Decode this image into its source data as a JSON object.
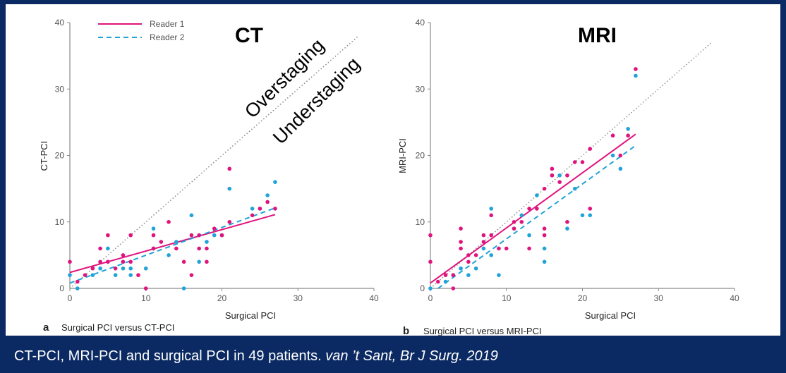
{
  "colors": {
    "reader1": "#e0137d",
    "reader2": "#1fa3d8",
    "identity": "#8a8a8a",
    "axis": "#8a8a8a"
  },
  "caption": {
    "text": "CT-PCI, MRI-PCI and surgical PCI in 49 patients.",
    "citation": "van ’t Sant, Br J Surg. 2019"
  },
  "annotations": {
    "overstaging": "Overstaging",
    "understaging": "Understaging"
  },
  "chart_data": [
    {
      "type": "scatter",
      "panel_letter": "a",
      "title": "CT",
      "subtitle": "Surgical PCI versus CT-PCI",
      "xlabel": "Surgical PCI",
      "ylabel": "CT-PCI",
      "xlim": [
        0,
        40
      ],
      "ylim": [
        0,
        40
      ],
      "xticks": [
        0,
        10,
        20,
        30,
        40
      ],
      "yticks": [
        10,
        20,
        30,
        40
      ],
      "legend": [
        {
          "name": "Reader 1",
          "style": "solid"
        },
        {
          "name": "Reader 2",
          "style": "dashed"
        }
      ],
      "identity_line": [
        [
          0,
          0
        ],
        [
          38,
          38
        ]
      ],
      "series": [
        {
          "name": "Reader 1",
          "points": [
            [
              0,
              4
            ],
            [
              1,
              1
            ],
            [
              2,
              2
            ],
            [
              3,
              3
            ],
            [
              4,
              4
            ],
            [
              4,
              6
            ],
            [
              5,
              8
            ],
            [
              5,
              4
            ],
            [
              6,
              3
            ],
            [
              7,
              5
            ],
            [
              7,
              4
            ],
            [
              8,
              8
            ],
            [
              8,
              4
            ],
            [
              9,
              2
            ],
            [
              10,
              0
            ],
            [
              11,
              8
            ],
            [
              11,
              6
            ],
            [
              12,
              7
            ],
            [
              13,
              10
            ],
            [
              14,
              6
            ],
            [
              15,
              4
            ],
            [
              16,
              8
            ],
            [
              16,
              2
            ],
            [
              17,
              6
            ],
            [
              17,
              8
            ],
            [
              18,
              4
            ],
            [
              18,
              6
            ],
            [
              19,
              9
            ],
            [
              20,
              8
            ],
            [
              21,
              10
            ],
            [
              21,
              18
            ],
            [
              24,
              11
            ],
            [
              25,
              12
            ],
            [
              26,
              13
            ],
            [
              27,
              12
            ]
          ],
          "fit": [
            [
              0,
              2.4
            ],
            [
              27,
              11.1
            ]
          ]
        },
        {
          "name": "Reader 2",
          "points": [
            [
              0,
              2
            ],
            [
              1,
              0
            ],
            [
              3,
              2
            ],
            [
              4,
              3
            ],
            [
              5,
              6
            ],
            [
              6,
              2
            ],
            [
              7,
              3
            ],
            [
              7,
              4
            ],
            [
              8,
              3
            ],
            [
              8,
              2
            ],
            [
              10,
              3
            ],
            [
              11,
              9
            ],
            [
              11,
              6
            ],
            [
              13,
              5
            ],
            [
              14,
              7
            ],
            [
              15,
              0
            ],
            [
              16,
              11
            ],
            [
              17,
              4
            ],
            [
              18,
              7
            ],
            [
              19,
              8
            ],
            [
              20,
              8
            ],
            [
              21,
              15
            ],
            [
              24,
              12
            ],
            [
              25,
              12
            ],
            [
              26,
              14
            ],
            [
              27,
              16
            ]
          ],
          "fit": [
            [
              0,
              0.8
            ],
            [
              27,
              12.1
            ]
          ]
        }
      ]
    },
    {
      "type": "scatter",
      "panel_letter": "b",
      "title": "MRI",
      "subtitle": "Surgical PCI versus MRI-PCI",
      "xlabel": "Surgical PCI",
      "ylabel": "MRI-PCI",
      "xlim": [
        0,
        40
      ],
      "ylim": [
        0,
        40
      ],
      "xticks": [
        0,
        10,
        20,
        30,
        40
      ],
      "yticks": [
        10,
        20,
        30,
        40
      ],
      "identity_line": [
        [
          0,
          0
        ],
        [
          37,
          37
        ]
      ],
      "series": [
        {
          "name": "Reader 1",
          "points": [
            [
              0,
              8
            ],
            [
              0,
              4
            ],
            [
              1,
              1
            ],
            [
              2,
              2
            ],
            [
              3,
              0
            ],
            [
              3,
              2
            ],
            [
              4,
              9
            ],
            [
              4,
              7
            ],
            [
              4,
              6
            ],
            [
              5,
              5
            ],
            [
              5,
              4
            ],
            [
              6,
              5
            ],
            [
              7,
              8
            ],
            [
              7,
              7
            ],
            [
              8,
              8
            ],
            [
              8,
              11
            ],
            [
              9,
              6
            ],
            [
              10,
              6
            ],
            [
              11,
              9
            ],
            [
              11,
              10
            ],
            [
              12,
              10
            ],
            [
              13,
              12
            ],
            [
              13,
              6
            ],
            [
              14,
              12
            ],
            [
              15,
              15
            ],
            [
              15,
              9
            ],
            [
              15,
              8
            ],
            [
              16,
              18
            ],
            [
              16,
              17
            ],
            [
              17,
              16
            ],
            [
              18,
              17
            ],
            [
              18,
              10
            ],
            [
              19,
              19
            ],
            [
              20,
              19
            ],
            [
              21,
              21
            ],
            [
              21,
              12
            ],
            [
              24,
              23
            ],
            [
              25,
              20
            ],
            [
              26,
              23
            ],
            [
              27,
              33
            ]
          ],
          "fit": [
            [
              0,
              0.8
            ],
            [
              27,
              23.2
            ]
          ]
        },
        {
          "name": "Reader 2",
          "points": [
            [
              0,
              0
            ],
            [
              2,
              1
            ],
            [
              3,
              2
            ],
            [
              4,
              3
            ],
            [
              5,
              2
            ],
            [
              6,
              3
            ],
            [
              7,
              6
            ],
            [
              8,
              12
            ],
            [
              8,
              5
            ],
            [
              9,
              2
            ],
            [
              11,
              9
            ],
            [
              12,
              11
            ],
            [
              13,
              8
            ],
            [
              14,
              14
            ],
            [
              15,
              6
            ],
            [
              15,
              4
            ],
            [
              16,
              17
            ],
            [
              17,
              17
            ],
            [
              18,
              9
            ],
            [
              19,
              15
            ],
            [
              20,
              11
            ],
            [
              21,
              11
            ],
            [
              24,
              20
            ],
            [
              25,
              18
            ],
            [
              26,
              24
            ],
            [
              27,
              32
            ]
          ],
          "fit": [
            [
              1,
              0
            ],
            [
              27,
              21.5
            ]
          ]
        }
      ]
    }
  ]
}
